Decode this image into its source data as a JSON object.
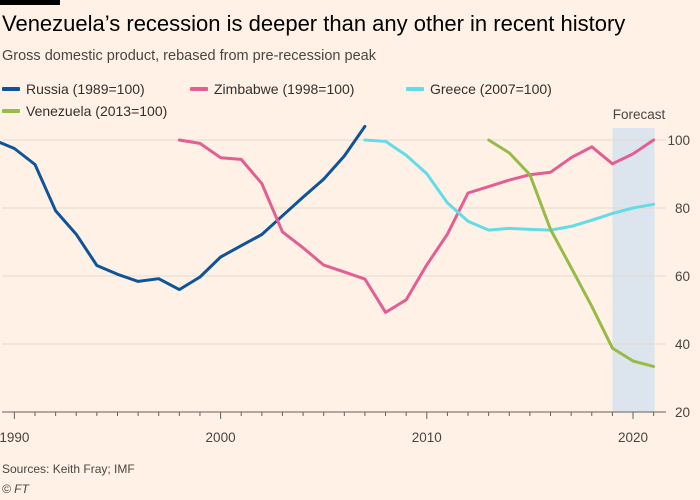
{
  "header": {
    "title": "Venezuela’s recession is deeper than any other in recent history",
    "subtitle": "Gross domestic product, rebased from pre-recession peak"
  },
  "footer": {
    "source": "Sources: Keith Fray; IMF",
    "credit": "© FT"
  },
  "chart_data": {
    "type": "line",
    "title": "Venezuela’s recession is deeper than any other in recent history",
    "subtitle": "Gross domestic product, rebased from pre-recession peak",
    "xlim": [
      1989.4,
      2021.6
    ],
    "ylim": [
      20,
      100
    ],
    "yticks": [
      20,
      40,
      60,
      80,
      100
    ],
    "xticks": [
      1990,
      2000,
      2010,
      2020
    ],
    "grid": true,
    "legend_position": "top",
    "forecast": {
      "label": "Forecast",
      "from": 2019,
      "to": 2021
    },
    "colors": {
      "background": "#fff1e5",
      "grid": "#e6d9ce",
      "forecast_band": "#dce5ee"
    },
    "series": [
      {
        "name": "Russia (1989=100)",
        "color": "#0f5499",
        "x": [
          1989,
          1990,
          1991,
          1992,
          1993,
          1994,
          1995,
          1996,
          1997,
          1998,
          1999,
          2000,
          2001,
          2002,
          2003,
          2004,
          2005,
          2006,
          2007
        ],
        "y": [
          100,
          97.5,
          92.8,
          79.2,
          72.3,
          63.1,
          60.5,
          58.4,
          59.2,
          56.0,
          59.7,
          65.6,
          68.9,
          72.2,
          77.7,
          83.2,
          88.5,
          95.3,
          104
        ]
      },
      {
        "name": "Zimbabwe (1998=100)",
        "color": "#e45e93",
        "x": [
          1998,
          1999,
          2000,
          2001,
          2002,
          2003,
          2004,
          2005,
          2006,
          2007,
          2008,
          2009,
          2010,
          2011,
          2012,
          2013,
          2014,
          2015,
          2016,
          2017,
          2018,
          2019,
          2020,
          2021
        ],
        "y": [
          100,
          99,
          94.8,
          94.3,
          87.2,
          73.0,
          68.3,
          63.2,
          61.2,
          59.1,
          49.3,
          53.0,
          63.3,
          72.3,
          84.4,
          86.3,
          88.2,
          89.8,
          90.5,
          94.8,
          98.0,
          93.0,
          95.9,
          100
        ]
      },
      {
        "name": "Greece (2007=100)",
        "color": "#62dce6",
        "x": [
          2007,
          2008,
          2009,
          2010,
          2011,
          2012,
          2013,
          2014,
          2015,
          2016,
          2017,
          2018,
          2019,
          2020,
          2021
        ],
        "y": [
          100,
          99.6,
          95.5,
          90.1,
          81.5,
          76.1,
          73.5,
          74.0,
          73.7,
          73.5,
          74.6,
          76.4,
          78.4,
          80.0,
          81.1
        ]
      },
      {
        "name": "Venezuela (2013=100)",
        "color": "#96bb47",
        "x": [
          2013,
          2014,
          2015,
          2016,
          2017,
          2018,
          2019,
          2020,
          2021
        ],
        "y": [
          100,
          96.2,
          89.8,
          73.7,
          62.5,
          51.1,
          38.8,
          35.0,
          33.4
        ]
      }
    ]
  }
}
